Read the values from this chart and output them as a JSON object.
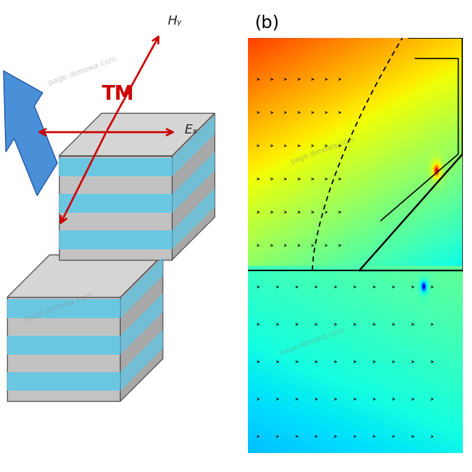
{
  "bg_color": "white",
  "panel_b_label": "(b)",
  "tm_label": "TM",
  "hy_label": "Hᵧ",
  "ex_label": "Eₓ",
  "arrow_color": "#cc0000",
  "wave_arrow_color": "#3a7fd5",
  "watermark": "page.dimowa.com"
}
